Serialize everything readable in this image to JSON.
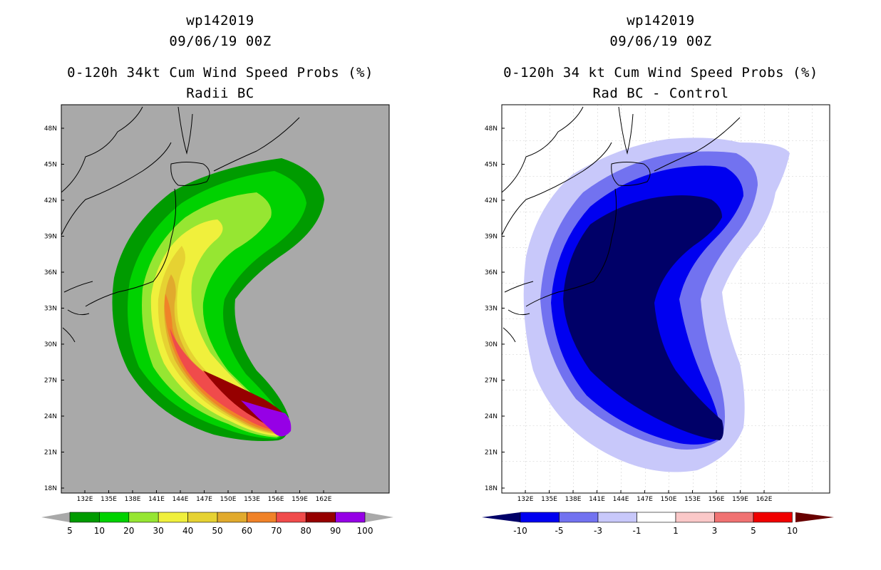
{
  "colors": {
    "land_gray": "#a9a9a9",
    "prob_scale": [
      "#009b00",
      "#00d200",
      "#96e632",
      "#f0f03c",
      "#e6d232",
      "#e1aa2d",
      "#f08228",
      "#f04b4b",
      "#960000",
      "#9600e6"
    ],
    "diff_scale": [
      "#000068",
      "#0000f0",
      "#7272f0",
      "#c8c8fa",
      "#ffffff",
      "#fac8c8",
      "#f07272",
      "#f00000",
      "#680000"
    ]
  },
  "left": {
    "title1": "wp142019",
    "title2": "09/06/19 00Z",
    "title3": "0-120h 34kt Cum Wind Speed Probs (%)",
    "title4": "Radii BC",
    "colorbar_labels": [
      "5",
      "10",
      "20",
      "30",
      "40",
      "50",
      "60",
      "70",
      "80",
      "90",
      "100"
    ]
  },
  "right": {
    "title1": "wp142019",
    "title2": "09/06/19 00Z",
    "title3": "0-120h 34 kt Cum Wind Speed Probs (%)",
    "title4": "Rad BC - Control",
    "colorbar_labels": [
      "-10",
      "-5",
      "-3",
      "-1",
      "1",
      "3",
      "5",
      "10"
    ]
  },
  "axes": {
    "lon_labels": [
      "132E",
      "135E",
      "138E",
      "141E",
      "144E",
      "147E",
      "150E",
      "153E",
      "156E",
      "159E",
      "162E"
    ],
    "lat_labels": [
      "48N",
      "45N",
      "42N",
      "39N",
      "36N",
      "33N",
      "30N",
      "27N",
      "24N",
      "21N",
      "18N"
    ]
  }
}
